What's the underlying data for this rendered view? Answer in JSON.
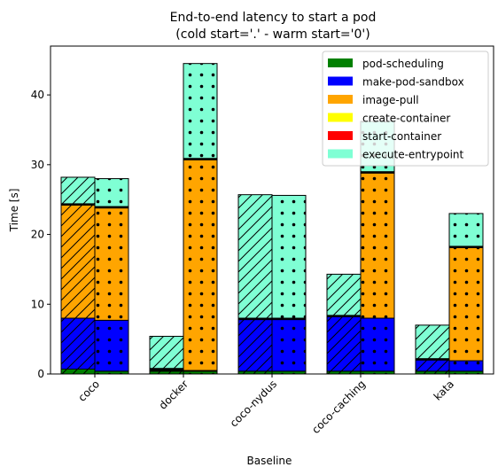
{
  "chart_data": {
    "type": "bar",
    "stacked": true,
    "title": "End-to-end latency to start a pod",
    "subtitle": "(cold start='.' - warm start='0')",
    "xlabel": "Baseline",
    "ylabel": "Time [s]",
    "ylim": [
      0,
      47
    ],
    "yticks": [
      0,
      10,
      20,
      30,
      40
    ],
    "grid": false,
    "legend_position": "top-right",
    "categories": [
      "coco",
      "docker",
      "coco-nydus",
      "coco-caching",
      "kata"
    ],
    "bar_groups": [
      {
        "name": "warm",
        "hatch": "diagonal"
      },
      {
        "name": "cold",
        "hatch": "dots"
      }
    ],
    "series": [
      {
        "name": "pod-scheduling",
        "color": "#008000",
        "warm": [
          0.7,
          0.4,
          0.4,
          0.4,
          0.4
        ],
        "cold": [
          0.4,
          0.4,
          0.4,
          0.4,
          0.4
        ]
      },
      {
        "name": "make-pod-sandbox",
        "color": "#0000ff",
        "warm": [
          7.3,
          0.1,
          7.4,
          7.8,
          1.6
        ],
        "cold": [
          7.3,
          0.1,
          7.4,
          7.6,
          1.5
        ]
      },
      {
        "name": "image-pull",
        "color": "#ffa500",
        "warm": [
          16.2,
          0.1,
          0.0,
          0.0,
          0.0
        ],
        "cold": [
          16.1,
          30.2,
          0.0,
          20.8,
          16.2
        ]
      },
      {
        "name": "create-container",
        "color": "#ffff00",
        "warm": [
          0.1,
          0.1,
          0.1,
          0.1,
          0.1
        ],
        "cold": [
          0.1,
          0.1,
          0.1,
          0.1,
          0.1
        ]
      },
      {
        "name": "start-container",
        "color": "#ff0000",
        "warm": [
          0.1,
          0.1,
          0.1,
          0.1,
          0.1
        ],
        "cold": [
          0.1,
          0.1,
          0.1,
          0.1,
          0.1
        ]
      },
      {
        "name": "execute-entrypoint",
        "color": "#7fffd4",
        "warm": [
          3.8,
          4.6,
          17.7,
          5.9,
          4.8
        ],
        "cold": [
          4.0,
          13.6,
          17.6,
          7.2,
          4.7
        ]
      }
    ]
  }
}
